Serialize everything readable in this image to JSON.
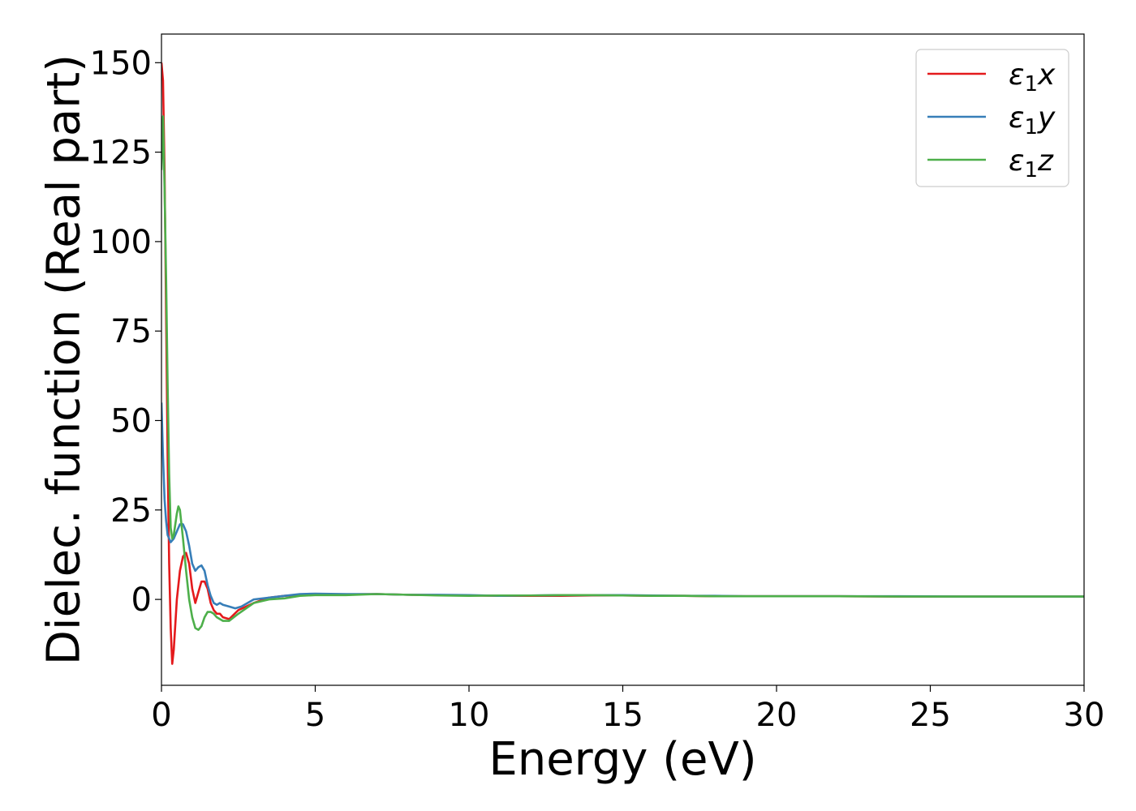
{
  "chart_data": {
    "type": "line",
    "title": "",
    "xlabel": "Energy (eV)",
    "ylabel": "Dielec. function (Real part)",
    "xlim": [
      0,
      30
    ],
    "ylim": [
      -24,
      158
    ],
    "xticks": [
      0,
      5,
      10,
      15,
      20,
      25,
      30
    ],
    "yticks": [
      0,
      25,
      50,
      75,
      100,
      125,
      150
    ],
    "grid": false,
    "legend_position": "top-right",
    "series": [
      {
        "name": "ε₁x",
        "legend_base": "ε",
        "legend_sub": "1",
        "legend_var": "x",
        "color": "#e41a1c",
        "x": [
          0,
          0.05,
          0.1,
          0.15,
          0.2,
          0.25,
          0.3,
          0.35,
          0.4,
          0.5,
          0.6,
          0.7,
          0.8,
          0.9,
          1.0,
          1.1,
          1.2,
          1.3,
          1.4,
          1.5,
          1.6,
          1.7,
          1.8,
          1.9,
          2.0,
          2.2,
          2.5,
          3.0,
          3.5,
          4.0,
          4.5,
          5.0,
          6.0,
          7.0,
          8.0,
          9.0,
          10.0,
          11.0,
          12.0,
          13.0,
          14.0,
          15.0,
          16.0,
          17.0,
          18.0,
          19.0,
          20.0,
          22.0,
          24.0,
          26.0,
          28.0,
          30.0
        ],
        "y": [
          150,
          145,
          120,
          80,
          40,
          10,
          -8,
          -18,
          -14,
          0,
          8,
          12,
          13,
          10,
          3,
          -1,
          2,
          5,
          5,
          3,
          -1,
          -3,
          -4,
          -4,
          -5,
          -5.5,
          -3,
          -1,
          0.5,
          1,
          1.2,
          1.3,
          1.4,
          1.5,
          1.3,
          1.2,
          1.1,
          1.0,
          1.0,
          1.0,
          1.1,
          1.1,
          1.0,
          1.0,
          0.9,
          0.9,
          0.9,
          0.9,
          0.8,
          0.8,
          0.8,
          0.8
        ]
      },
      {
        "name": "ε₁y",
        "legend_base": "ε",
        "legend_sub": "1",
        "legend_var": "y",
        "color": "#377eb8",
        "x": [
          0,
          0.05,
          0.1,
          0.15,
          0.2,
          0.3,
          0.4,
          0.5,
          0.6,
          0.7,
          0.8,
          0.9,
          1.0,
          1.1,
          1.2,
          1.3,
          1.4,
          1.5,
          1.6,
          1.7,
          1.8,
          1.9,
          2.0,
          2.2,
          2.4,
          2.6,
          3.0,
          3.5,
          4.0,
          4.5,
          5.0,
          6.0,
          7.0,
          8.0,
          9.0,
          10.0,
          11.0,
          12.0,
          13.0,
          14.0,
          15.0,
          16.0,
          17.0,
          18.0,
          19.0,
          20.0,
          22.0,
          24.0,
          26.0,
          28.0,
          30.0
        ],
        "y": [
          55,
          40,
          28,
          22,
          18,
          16,
          17,
          19,
          21,
          21,
          19,
          15,
          10,
          8,
          9,
          9.5,
          8,
          4,
          1,
          -1,
          -1.5,
          -1,
          -1.5,
          -2,
          -2.5,
          -2,
          0,
          0.5,
          1,
          1.5,
          1.6,
          1.5,
          1.5,
          1.3,
          1.3,
          1.2,
          1.0,
          1.1,
          1.2,
          1.2,
          1.2,
          1.1,
          1.0,
          1.0,
          0.9,
          0.9,
          0.9,
          0.9,
          0.8,
          0.8,
          0.8
        ]
      },
      {
        "name": "ε₁z",
        "legend_base": "ε",
        "legend_sub": "1",
        "legend_var": "z",
        "color": "#4daf4a",
        "x": [
          0,
          0.05,
          0.1,
          0.15,
          0.2,
          0.25,
          0.3,
          0.35,
          0.4,
          0.5,
          0.55,
          0.6,
          0.7,
          0.8,
          0.9,
          1.0,
          1.1,
          1.2,
          1.3,
          1.4,
          1.5,
          1.6,
          1.7,
          1.8,
          1.9,
          2.0,
          2.2,
          2.5,
          3.0,
          3.5,
          4.0,
          4.5,
          5.0,
          6.0,
          7.0,
          8.0,
          9.0,
          10.0,
          11.0,
          12.0,
          13.0,
          14.0,
          15.0,
          16.0,
          17.0,
          18.0,
          19.0,
          20.0,
          22.0,
          24.0,
          26.0,
          28.0,
          30.0
        ],
        "y": [
          120,
          135,
          115,
          90,
          60,
          35,
          20,
          17,
          18,
          24,
          26,
          25,
          17,
          8,
          0,
          -5,
          -8,
          -8.5,
          -7.5,
          -5,
          -3.5,
          -3.5,
          -4,
          -5,
          -5.5,
          -6,
          -6,
          -4,
          -1,
          0,
          0.3,
          1,
          1.2,
          1.2,
          1.5,
          1.3,
          1.1,
          1.0,
          1.1,
          1.1,
          1.2,
          1.2,
          1.1,
          1.0,
          1.0,
          0.9,
          0.9,
          0.9,
          0.9,
          0.8,
          0.8,
          0.8,
          0.8
        ]
      }
    ]
  }
}
